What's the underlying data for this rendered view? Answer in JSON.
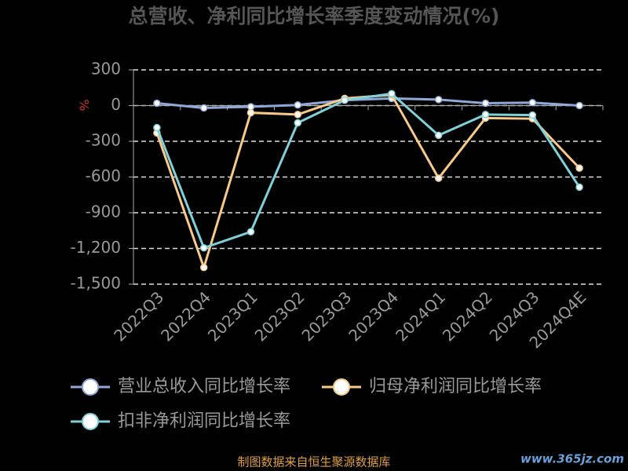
{
  "chart_data": {
    "type": "line",
    "title": "总营收、净利同比增长率季度变动情况(%)",
    "y_label": "%",
    "categories": [
      "2022Q3",
      "2022Q4",
      "2023Q1",
      "2023Q2",
      "2023Q3",
      "2023Q4",
      "2024Q1",
      "2024Q2",
      "2024Q3",
      "2024Q4E"
    ],
    "series": [
      {
        "name": "营业总收入同比增长率",
        "color": "#8fa8d8",
        "values": [
          20,
          -20,
          -10,
          5,
          45,
          60,
          50,
          20,
          25,
          0
        ]
      },
      {
        "name": "归母净利润同比增长率",
        "color": "#f7c98a",
        "values": [
          -230,
          -1360,
          -60,
          -75,
          60,
          90,
          -610,
          -105,
          -110,
          -525
        ]
      },
      {
        "name": "扣非净利润同比增长率",
        "color": "#7fd0d8",
        "values": [
          -185,
          -1195,
          -1060,
          -145,
          45,
          100,
          -250,
          -75,
          -80,
          -685
        ]
      }
    ],
    "ylim": [
      -1500,
      300
    ],
    "yticks": [
      300,
      0,
      -300,
      -600,
      -900,
      {
        "value": -1200,
        "label": "-1,200"
      },
      {
        "value": -1500,
        "label": "-1,500"
      }
    ],
    "grid": true,
    "legend": "bottom",
    "footer": "制图数据来自恒生聚源数据库",
    "watermark": "www.365jz.com"
  }
}
